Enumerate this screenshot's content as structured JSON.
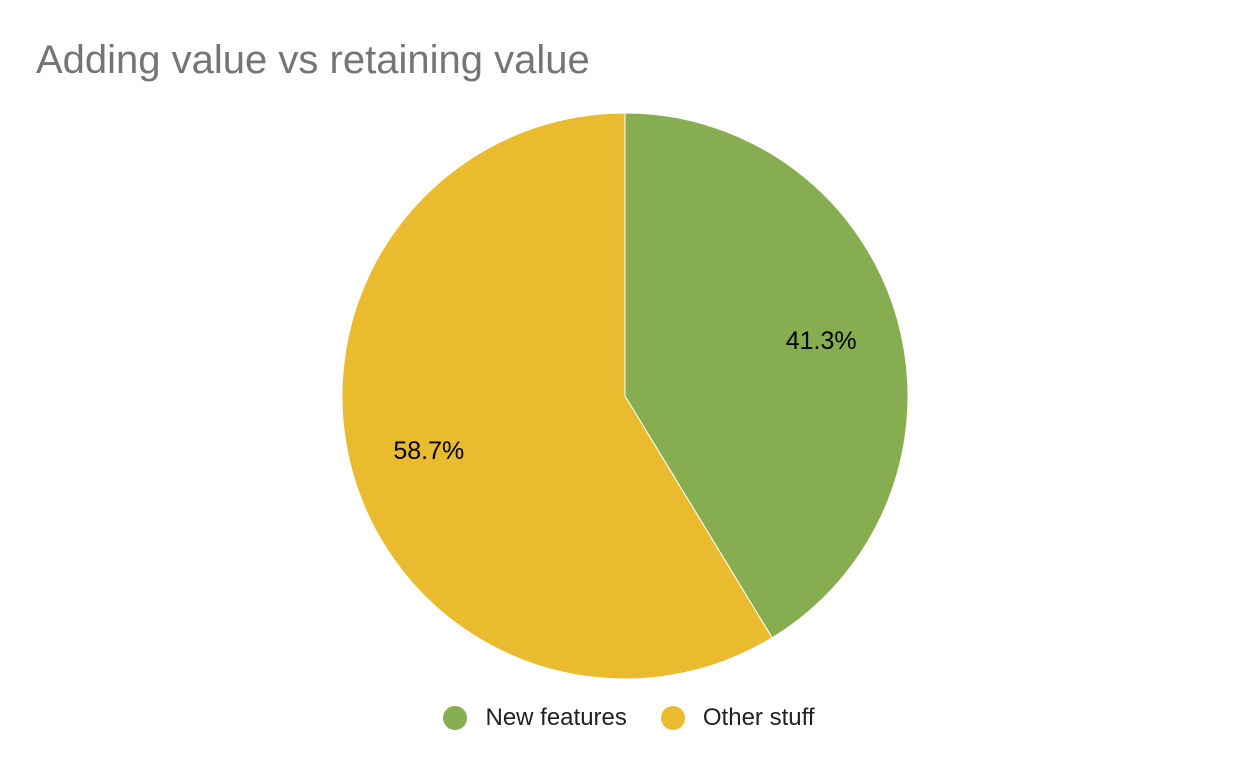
{
  "chart_data": {
    "type": "pie",
    "title": "Adding value vs retaining value",
    "slices": [
      {
        "label": "New features",
        "value": 41.3,
        "display": "41.3%",
        "color": "#86ad50"
      },
      {
        "label": "Other stuff",
        "value": 58.7,
        "display": "58.7%",
        "color": "#eabb2e"
      }
    ],
    "start_angle": "12 o'clock",
    "direction": "clockwise",
    "legend_position": "bottom"
  }
}
